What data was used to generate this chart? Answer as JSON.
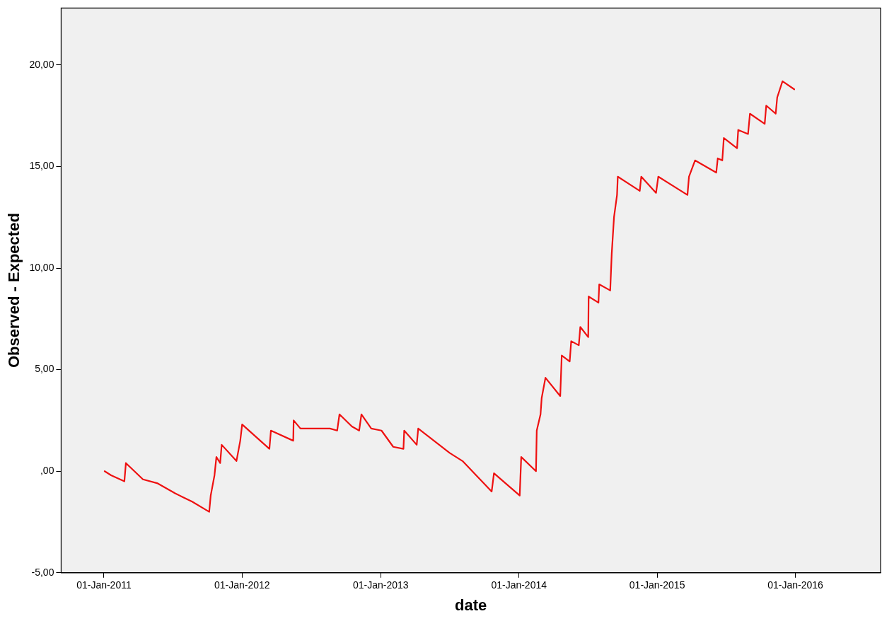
{
  "chart_data": {
    "type": "line",
    "xlabel": "date",
    "ylabel": "Observed - Expected",
    "x": [
      "2011-01-03",
      "2011-01-20",
      "2011-02-24",
      "2011-02-28",
      "2011-04-14",
      "2011-05-23",
      "2011-07-09",
      "2011-08-22",
      "2011-10-06",
      "2011-10-10",
      "2011-10-20",
      "2011-10-25",
      "2011-11-04",
      "2011-11-08",
      "2011-12-17",
      "2011-12-27",
      "2012-01-01",
      "2012-03-13",
      "2012-03-17",
      "2012-05-15",
      "2012-05-16",
      "2012-06-03",
      "2012-08-20",
      "2012-09-08",
      "2012-09-14",
      "2012-10-17",
      "2012-11-05",
      "2012-11-11",
      "2012-12-07",
      "2013-01-03",
      "2013-02-03",
      "2013-03-02",
      "2013-03-04",
      "2013-04-06",
      "2013-04-10",
      "2013-07-02",
      "2013-08-05",
      "2013-10-21",
      "2013-10-27",
      "2014-01-03",
      "2014-01-07",
      "2014-02-15",
      "2014-02-17",
      "2014-02-27",
      "2014-03-02",
      "2014-03-12",
      "2014-04-20",
      "2014-04-24",
      "2014-05-15",
      "2014-05-19",
      "2014-06-08",
      "2014-06-12",
      "2014-07-03",
      "2014-07-04",
      "2014-07-30",
      "2014-08-01",
      "2014-08-30",
      "2014-09-03",
      "2014-09-09",
      "2014-09-17",
      "2014-09-19",
      "2014-11-16",
      "2014-11-20",
      "2014-12-29",
      "2015-01-04",
      "2015-03-22",
      "2015-03-26",
      "2015-04-11",
      "2015-06-06",
      "2015-06-10",
      "2015-06-22",
      "2015-06-26",
      "2015-07-31",
      "2015-08-03",
      "2015-08-29",
      "2015-09-03",
      "2015-10-12",
      "2015-10-16",
      "2015-11-10",
      "2015-11-14",
      "2015-11-28",
      "2015-12-29"
    ],
    "series": [
      {
        "color": "#ee1111",
        "values": [
          0.0,
          -0.2,
          -0.5,
          0.4,
          -0.4,
          -0.6,
          -1.1,
          -1.5,
          -2.0,
          -1.2,
          -0.2,
          0.7,
          0.4,
          1.3,
          0.5,
          1.5,
          2.3,
          1.1,
          2.0,
          1.5,
          2.5,
          2.1,
          2.1,
          2.0,
          2.8,
          2.2,
          2.0,
          2.8,
          2.1,
          2.0,
          1.2,
          1.1,
          2.0,
          1.3,
          2.1,
          0.9,
          0.5,
          -1.0,
          -0.1,
          -1.2,
          0.7,
          0.0,
          2.0,
          2.8,
          3.6,
          4.6,
          3.7,
          5.7,
          5.4,
          6.4,
          6.2,
          7.1,
          6.6,
          8.6,
          8.3,
          9.2,
          8.9,
          10.7,
          12.5,
          13.6,
          14.5,
          13.8,
          14.5,
          13.7,
          14.5,
          13.6,
          14.5,
          15.3,
          14.7,
          15.4,
          15.3,
          16.4,
          15.9,
          16.8,
          16.6,
          17.6,
          17.1,
          18.0,
          17.6,
          18.4,
          19.2,
          18.8
        ]
      }
    ],
    "xlim": [
      "2010-09-10",
      "2016-08-13"
    ],
    "xticks": [
      {
        "value": "2011-01-01",
        "label": "01-Jan-2011"
      },
      {
        "value": "2012-01-01",
        "label": "01-Jan-2012"
      },
      {
        "value": "2013-01-01",
        "label": "01-Jan-2013"
      },
      {
        "value": "2014-01-01",
        "label": "01-Jan-2014"
      },
      {
        "value": "2015-01-01",
        "label": "01-Jan-2015"
      },
      {
        "value": "2016-01-01",
        "label": "01-Jan-2016"
      }
    ],
    "ylim": [
      -5,
      22.8
    ],
    "yticks": [
      {
        "value": -5,
        "label": "-5,00"
      },
      {
        "value": 0,
        "label": ",00"
      },
      {
        "value": 5,
        "label": "5,00"
      },
      {
        "value": 10,
        "label": "10,00"
      },
      {
        "value": 15,
        "label": "15,00"
      },
      {
        "value": 20,
        "label": "20,00"
      }
    ],
    "grid": false,
    "legend": false,
    "marker": "none",
    "line_style": "solid"
  }
}
